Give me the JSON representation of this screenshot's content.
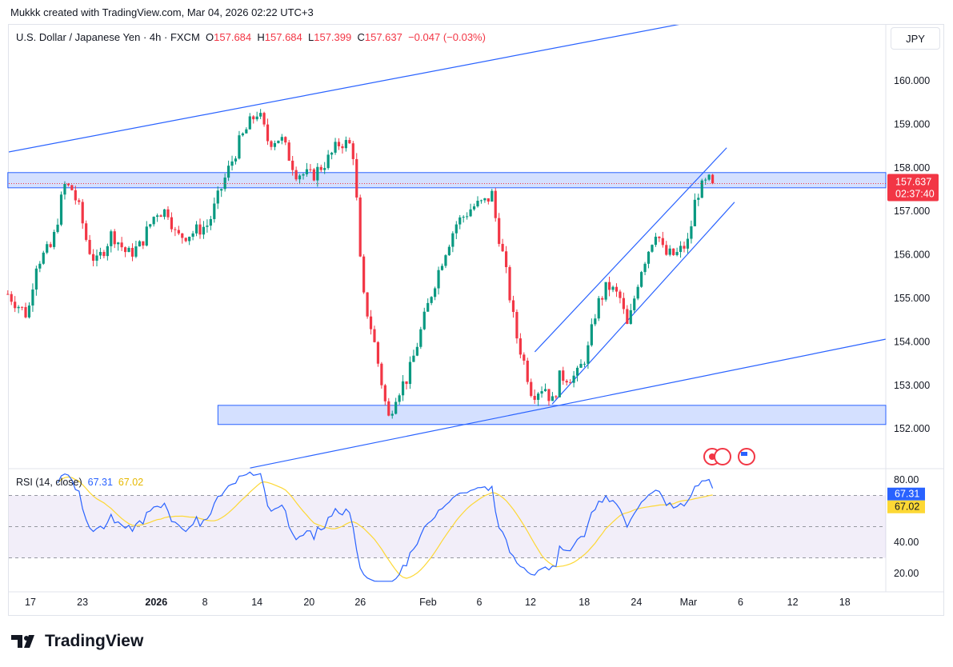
{
  "credit": "Mukkk created with TradingView.com, Mar 04, 2026 02:22 UTC+3",
  "legend": {
    "symbol": "U.S. Dollar / Japanese Yen · 4h · FXCM",
    "o_label": "O",
    "o": "157.684",
    "h_label": "H",
    "h": "157.684",
    "l_label": "L",
    "l": "157.399",
    "c_label": "C",
    "c": "157.637",
    "change": "−0.047 (−0.03%)"
  },
  "currency": "JPY",
  "price_axis": [
    "160.000",
    "159.000",
    "158.000",
    "157.000",
    "156.000",
    "155.000",
    "154.000",
    "153.000",
    "152.000"
  ],
  "last_price": {
    "value": "157.637",
    "countdown": "02:37:40"
  },
  "rsi": {
    "label": "RSI (14, close)",
    "value": "67.31",
    "ma": "67.02",
    "axis": [
      "80.00",
      "40.00",
      "20.00"
    ]
  },
  "time_axis": [
    {
      "t": "17",
      "d": 0
    },
    {
      "t": "23",
      "d": 6
    },
    {
      "t": "2026",
      "d": 14.5,
      "bold": true
    },
    {
      "t": "8",
      "d": 20.1
    },
    {
      "t": "14",
      "d": 26.1
    },
    {
      "t": "20",
      "d": 32.1
    },
    {
      "t": "26",
      "d": 38
    },
    {
      "t": "Feb",
      "d": 45.8
    },
    {
      "t": "6",
      "d": 51.7
    },
    {
      "t": "12",
      "d": 57.6
    },
    {
      "t": "18",
      "d": 63.8
    },
    {
      "t": "24",
      "d": 69.8
    },
    {
      "t": "Mar",
      "d": 75.8
    },
    {
      "t": "6",
      "d": 81.8
    },
    {
      "t": "12",
      "d": 87.8
    },
    {
      "t": "18",
      "d": 93.8
    }
  ],
  "brand": "TradingView",
  "colors": {
    "up": "#089981",
    "down": "#f23645",
    "drawing": "#2962ff",
    "rsi": "#2962ff",
    "rsi_ma": "#fdd835"
  },
  "chart_data": {
    "type": "candlestick",
    "x_unit": "days since Dec 17",
    "ylim": [
      151.2,
      161.6
    ],
    "path": [
      [
        -2.6,
        155.1
      ],
      [
        -0.3,
        154.6
      ],
      [
        0.6,
        155.8
      ],
      [
        2.5,
        156.2
      ],
      [
        3.9,
        157.6
      ],
      [
        4.8,
        157.5
      ],
      [
        5.7,
        157.0
      ],
      [
        6.6,
        156.2
      ],
      [
        7.6,
        155.8
      ],
      [
        9.4,
        156.5
      ],
      [
        11.2,
        156.0
      ],
      [
        12.6,
        156.2
      ],
      [
        14.5,
        157.0
      ],
      [
        15.9,
        157.0
      ],
      [
        16.8,
        156.4
      ],
      [
        18.6,
        156.5
      ],
      [
        20.5,
        156.7
      ],
      [
        22.3,
        157.7
      ],
      [
        24.1,
        158.6
      ],
      [
        25.5,
        159.1
      ],
      [
        26.2,
        159.3
      ],
      [
        27.4,
        158.6
      ],
      [
        28.8,
        158.7
      ],
      [
        30.6,
        157.9
      ],
      [
        32.4,
        157.8
      ],
      [
        34.3,
        158.2
      ],
      [
        35.7,
        158.6
      ],
      [
        37.1,
        158.5
      ],
      [
        37.5,
        157.5
      ],
      [
        38.0,
        155.8
      ],
      [
        38.4,
        155.0
      ],
      [
        39.4,
        154.2
      ],
      [
        40.7,
        152.8
      ],
      [
        41.2,
        152.2
      ],
      [
        42.1,
        152.8
      ],
      [
        43.5,
        153.2
      ],
      [
        44.9,
        154.2
      ],
      [
        46.3,
        155.2
      ],
      [
        47.6,
        156.0
      ],
      [
        49.0,
        156.7
      ],
      [
        50.9,
        157.1
      ],
      [
        52.3,
        157.2
      ],
      [
        53.2,
        157.4
      ],
      [
        53.6,
        156.8
      ],
      [
        54.6,
        155.8
      ],
      [
        55.9,
        154.2
      ],
      [
        56.9,
        153.5
      ],
      [
        57.8,
        152.8
      ],
      [
        59.2,
        153.0
      ],
      [
        60.1,
        152.6
      ],
      [
        61.0,
        153.2
      ],
      [
        62.9,
        153.2
      ],
      [
        64.2,
        153.8
      ],
      [
        65.2,
        154.8
      ],
      [
        66.5,
        155.3
      ],
      [
        67.9,
        155.0
      ],
      [
        68.8,
        154.3
      ],
      [
        70.2,
        155.6
      ],
      [
        72.1,
        156.6
      ],
      [
        73.0,
        156.0
      ],
      [
        74.4,
        156.0
      ],
      [
        75.8,
        156.3
      ],
      [
        76.7,
        157.4
      ],
      [
        78.1,
        157.7
      ],
      [
        78.8,
        157.64
      ]
    ],
    "trendlines": [
      [
        [
          -2.6,
          158.36
        ],
        [
          74.8,
          161.3
        ]
      ],
      [
        [
          25.3,
          151.1
        ],
        [
          98.5,
          154.06
        ]
      ],
      [
        [
          58.1,
          153.77
        ],
        [
          80.2,
          158.46
        ]
      ],
      [
        [
          60.1,
          152.57
        ],
        [
          81.1,
          157.21
        ]
      ]
    ],
    "zones": [
      {
        "from": -2.6,
        "top": 157.89,
        "bottom": 157.54
      },
      {
        "from": 21.6,
        "top": 152.54,
        "bottom": 152.1
      }
    ],
    "rsi_levels": [
      70,
      50,
      30
    ]
  }
}
